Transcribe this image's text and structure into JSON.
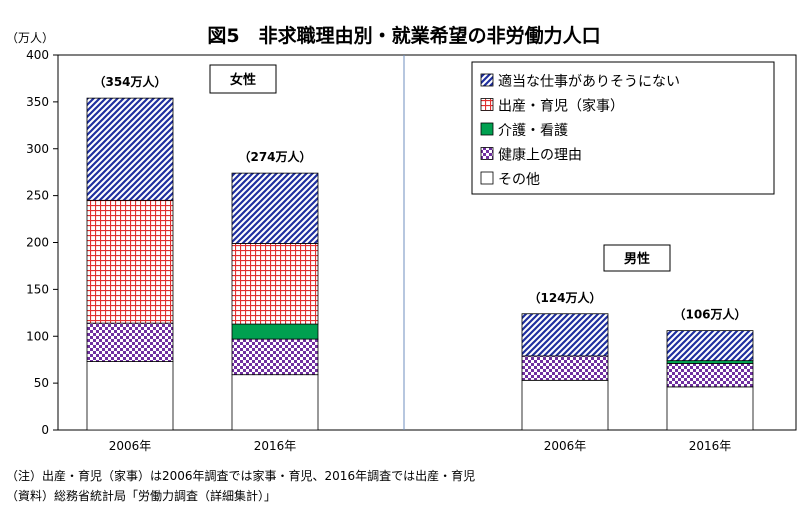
{
  "chart_data": {
    "type": "bar",
    "stacked": true,
    "title": "図5　非求職理由別・就業希望の非労働力人口",
    "ylabel": "（万人）",
    "ylim": [
      0,
      400
    ],
    "yticks": [
      0,
      50,
      100,
      150,
      200,
      250,
      300,
      350,
      400
    ],
    "groups": [
      {
        "label": "女性",
        "categories": [
          "2006年",
          "2016年"
        ],
        "totals": [
          "（354万人）",
          "（274万人）"
        ]
      },
      {
        "label": "男性",
        "categories": [
          "2006年",
          "2016年"
        ],
        "totals": [
          "（124万人）",
          "（106万人）"
        ]
      }
    ],
    "series": [
      {
        "name": "その他",
        "color": "#ffffff",
        "pattern": "none",
        "values": [
          73,
          59,
          53,
          46
        ]
      },
      {
        "name": "健康上の理由",
        "color": "#7030a0",
        "pattern": "checker",
        "values": [
          41,
          38,
          26,
          25
        ]
      },
      {
        "name": "介護・看護",
        "color": "#00a050",
        "pattern": "solid",
        "values": [
          0,
          16,
          0,
          3
        ]
      },
      {
        "name": "出産・育児（家事）",
        "color": "#e03030",
        "pattern": "grid",
        "values": [
          131,
          86,
          0,
          0
        ]
      },
      {
        "name": "適当な仕事がありそうにない",
        "color": "#1f2f9f",
        "pattern": "diagonal",
        "values": [
          109,
          75,
          45,
          32
        ]
      }
    ],
    "legend_order": [
      "適当な仕事がありそうにない",
      "出産・育児（家事）",
      "介護・看護",
      "健康上の理由",
      "その他"
    ],
    "legend_position": "top-right",
    "grid": false
  },
  "notes": [
    "（注）出産・育児（家事）は2006年調査では家事・育児、2016年調査では出産・育児",
    "（資料）総務省統計局「労働力調査（詳細集計）」"
  ]
}
